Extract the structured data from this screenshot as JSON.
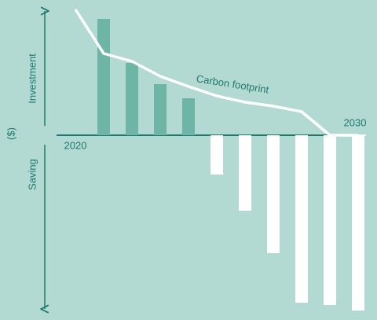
{
  "chart_data": {
    "type": "bar",
    "y_label_top": "Investment",
    "y_label_unit": "($)",
    "y_label_bottom": "Saving",
    "categories": [
      "2020",
      null,
      null,
      null,
      null,
      null,
      null,
      null,
      null,
      null,
      "2030"
    ],
    "values": [
      null,
      148,
      92,
      65,
      47,
      -50,
      -96,
      -150,
      -213,
      -216,
      -223
    ],
    "positive_color": "#6fb5a6",
    "negative_color": "#ffffff",
    "line": {
      "name": "Carbon footprint",
      "color": "#ffffff",
      "values": [
        160,
        104,
        94,
        75,
        62,
        50,
        42,
        37,
        30,
        0,
        0
      ]
    },
    "ylim": [
      -235,
      165
    ]
  }
}
